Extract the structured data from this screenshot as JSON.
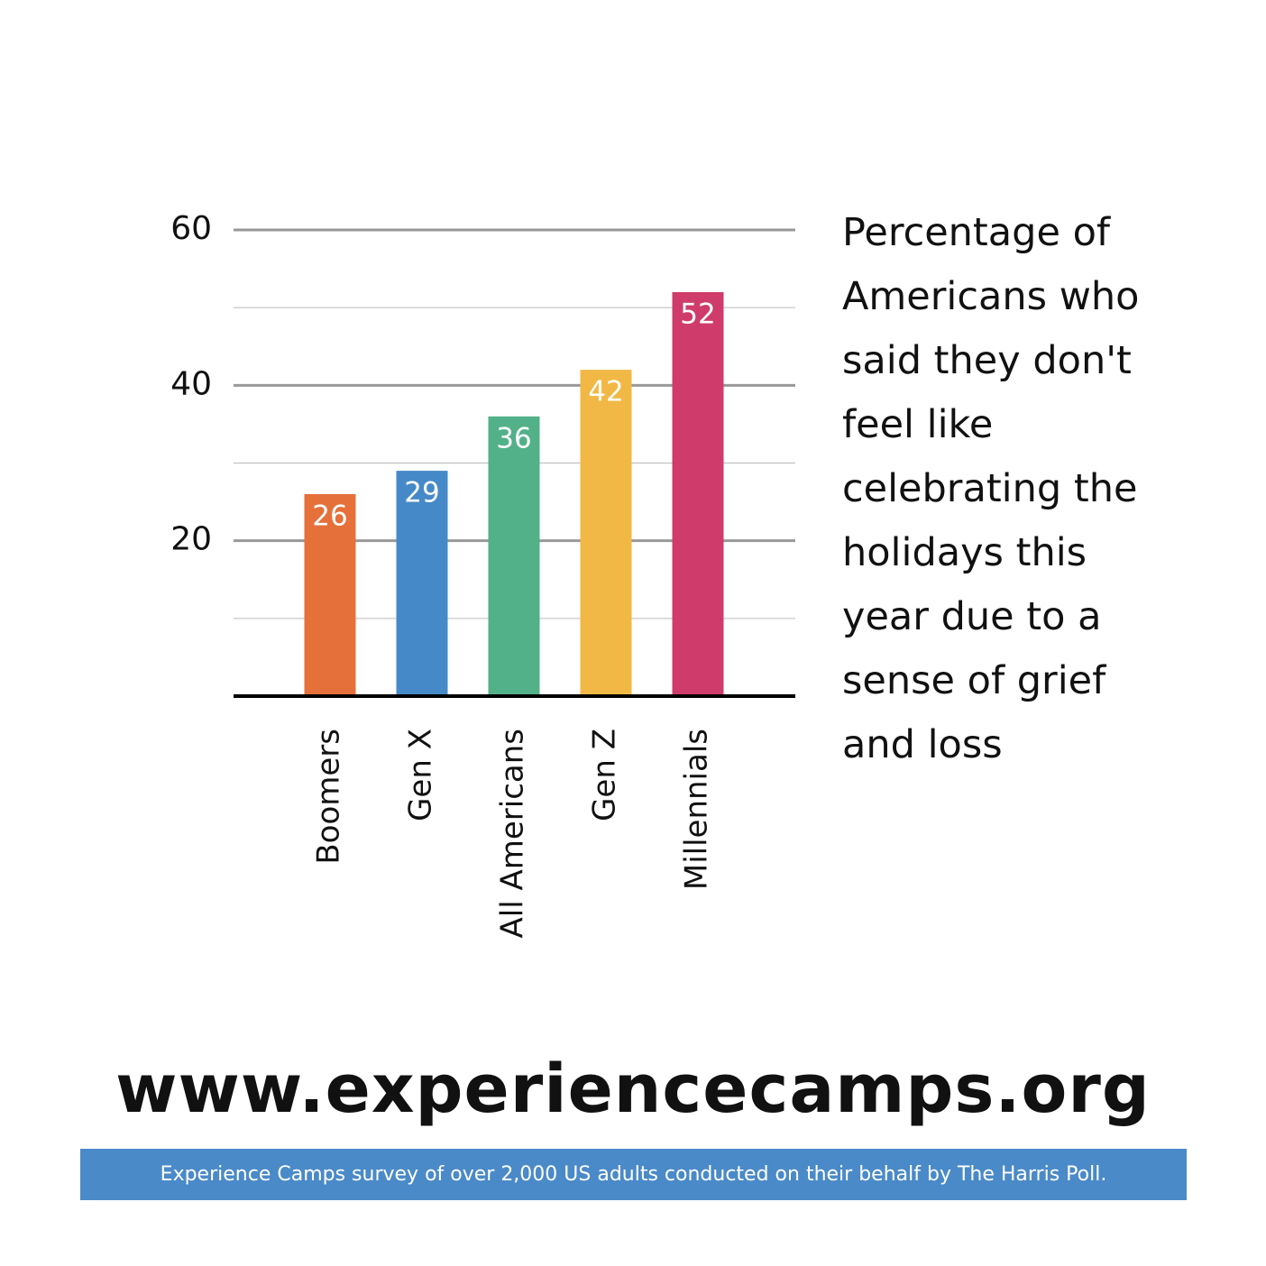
{
  "chart_data": {
    "type": "bar",
    "title": "Percentage of Americans who said they don't feel like celebrating the holidays this year due to a sense of grief and loss",
    "categories": [
      "Boomers",
      "Gen X",
      "All Americans",
      "Gen Z",
      "Millennials"
    ],
    "values": [
      26,
      29,
      36,
      42,
      52
    ],
    "colors": [
      "#e5703a",
      "#4689c8",
      "#52b189",
      "#f2b846",
      "#cf3c6b"
    ],
    "ylim": [
      0,
      60
    ],
    "yticks": [
      20,
      40,
      60
    ],
    "yminorticks": [
      10,
      30,
      50
    ],
    "grid": true
  },
  "website": "www.experiencecamps.org",
  "source": "Experience Camps survey of over 2,000 US adults conducted on their behalf by The Harris Poll."
}
